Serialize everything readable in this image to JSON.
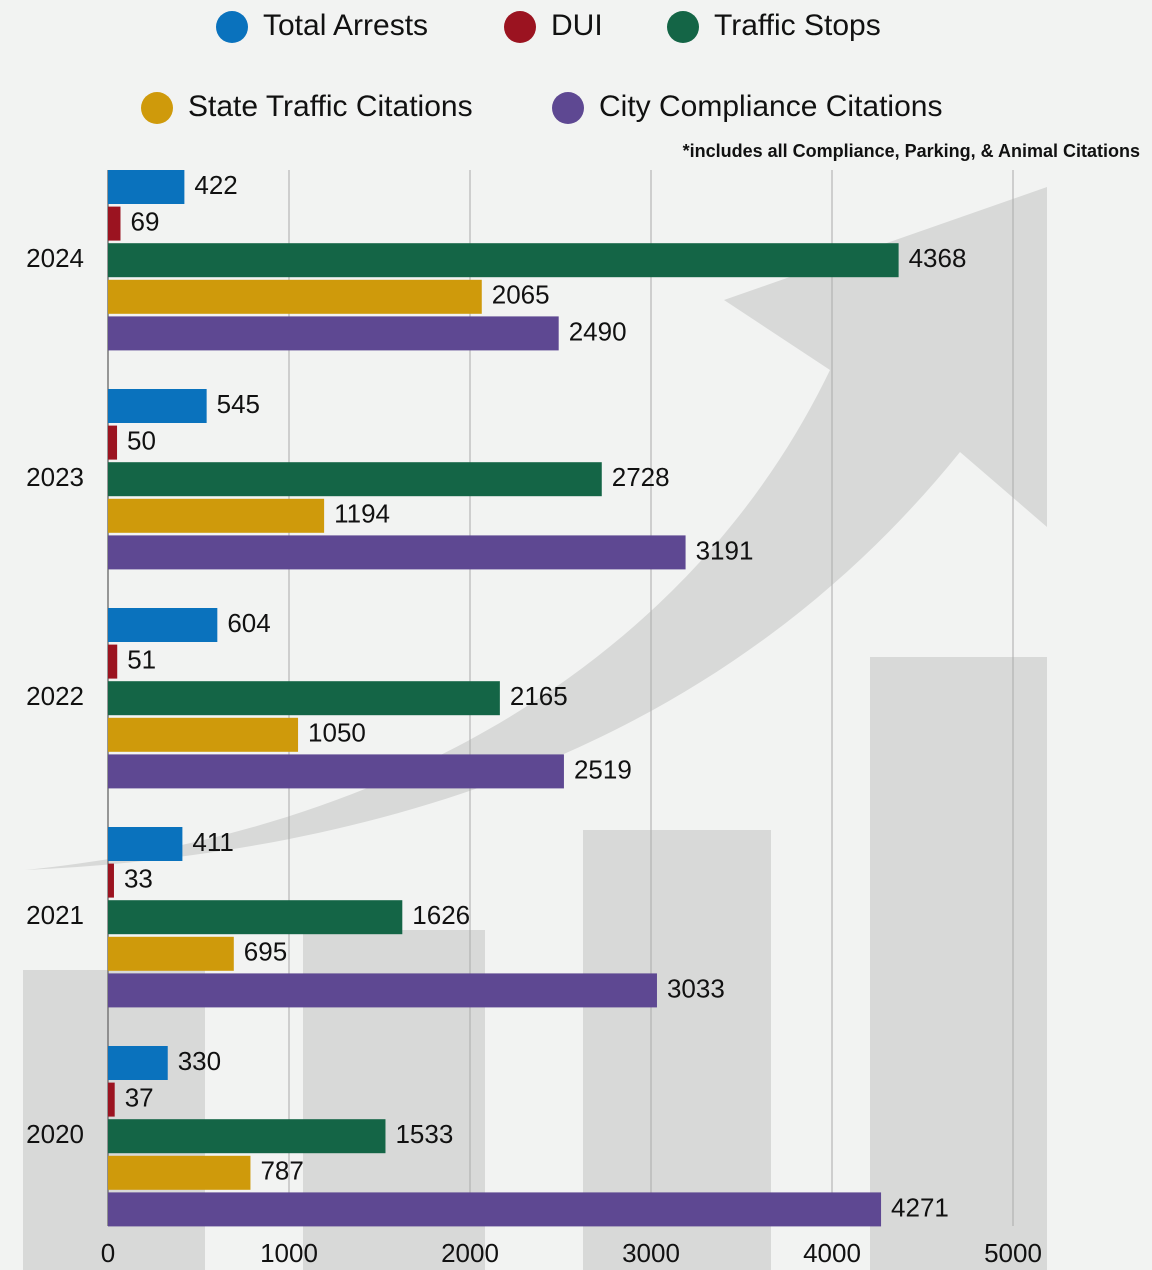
{
  "chart_data": {
    "type": "hbar",
    "note": "*includes all Compliance, Parking, & Animal Citations",
    "categories": [
      "2024",
      "2023",
      "2022",
      "2021",
      "2020"
    ],
    "series": [
      {
        "name": "Total Arrests",
        "color": "#0a72bd",
        "values": [
          422,
          545,
          604,
          411,
          330
        ]
      },
      {
        "name": "DUI",
        "color": "#9b1320",
        "values": [
          69,
          50,
          51,
          33,
          37
        ]
      },
      {
        "name": "Traffic Stops",
        "color": "#146546",
        "values": [
          4368,
          2728,
          2165,
          1626,
          1533
        ]
      },
      {
        "name": "State Traffic Citations",
        "color": "#cf9a0b",
        "values": [
          2065,
          1194,
          1050,
          695,
          787
        ]
      },
      {
        "name": "City Compliance Citations",
        "color": "#5e4892",
        "values": [
          2490,
          3191,
          2519,
          3033,
          4271
        ]
      }
    ],
    "xlim": [
      0,
      5000
    ],
    "xticks": [
      0,
      1000,
      2000,
      3000,
      4000,
      5000
    ],
    "grid": true
  }
}
